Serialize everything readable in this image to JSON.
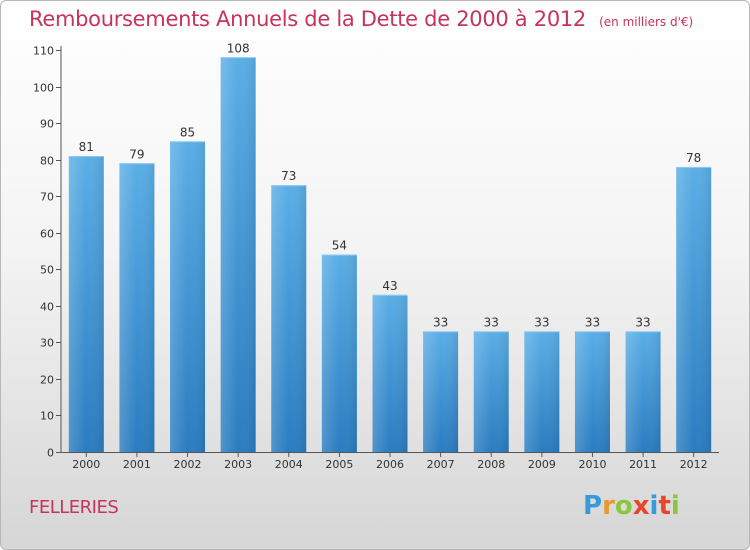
{
  "header": {
    "title": "Remboursements Annuels de la Dette de 2000 à 2012",
    "unit": "(en milliers d'€)"
  },
  "footer": {
    "commune": "FELLERIES",
    "logo_text": "Proxiti"
  },
  "colors": {
    "title": "#c8335a",
    "bar_top": "#5aaee6",
    "bar_bottom": "#2a7cc0",
    "logo_letters": [
      "#3a9ad9",
      "#e89a2a",
      "#8cc63f",
      "#e8452a",
      "#3a9ad9",
      "#e8452a",
      "#8cc63f"
    ]
  },
  "chart_data": {
    "type": "bar",
    "categories": [
      "2000",
      "2001",
      "2002",
      "2003",
      "2004",
      "2005",
      "2006",
      "2007",
      "2008",
      "2009",
      "2010",
      "2011",
      "2012"
    ],
    "values": [
      81,
      79,
      85,
      108,
      73,
      54,
      43,
      33,
      33,
      33,
      33,
      33,
      78
    ],
    "ylim": [
      0,
      110
    ],
    "yticks": [
      0,
      10,
      20,
      30,
      40,
      50,
      60,
      70,
      80,
      90,
      100,
      110
    ],
    "grid": false,
    "legend": "none"
  }
}
